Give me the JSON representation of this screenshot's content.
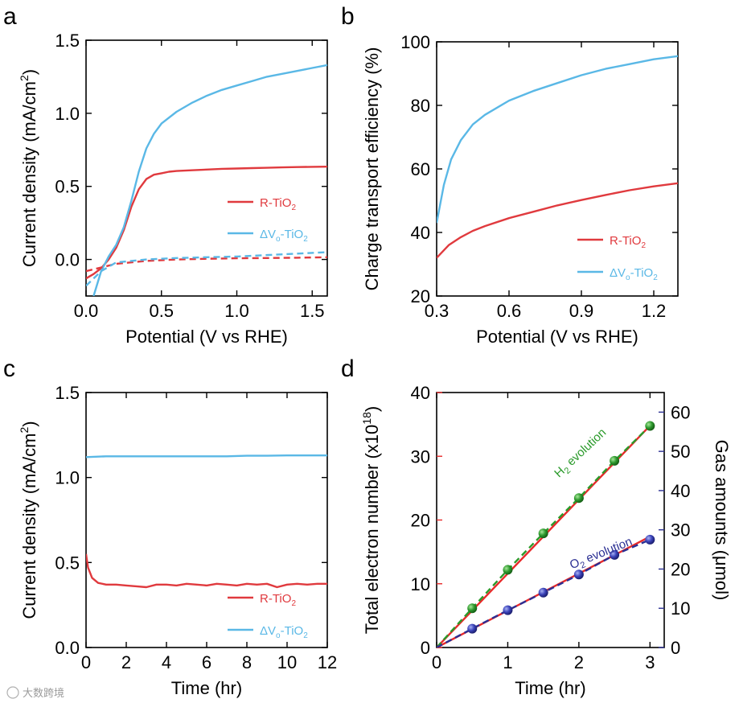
{
  "panels": [
    "a",
    "b",
    "c",
    "d"
  ],
  "watermark": "大数跨境",
  "colors": {
    "red": "#e03a3e",
    "blue": "#5ab8e6",
    "green": "#2a9a2a",
    "navy": "#2b2f93",
    "d_red": "#e82a2a"
  },
  "chart_data": [
    {
      "type": "line",
      "xlabel": "Potential (V vs RHE)",
      "ylabel": "Current density (mA/cm",
      "ylabel_sup": "2",
      "ylabel_close": ")",
      "xlim": [
        0,
        1.6
      ],
      "ylim": [
        -0.25,
        1.5
      ],
      "xticks": [
        0.0,
        0.5,
        1.0,
        1.5
      ],
      "xtick_labels": [
        "0.0",
        "0.5",
        "1.0",
        "1.5"
      ],
      "yticks": [
        0.0,
        0.5,
        1.0,
        1.5
      ],
      "ytick_labels": [
        "0.0",
        "0.5",
        "1.0",
        "1.5"
      ],
      "legend_position": "center-right",
      "series": [
        {
          "name": "R-TiO2",
          "legend_main": "R-TiO",
          "legend_sub": "2",
          "style": "solid",
          "color": "#e03a3e",
          "x": [
            0,
            0.05,
            0.1,
            0.15,
            0.2,
            0.25,
            0.3,
            0.35,
            0.4,
            0.45,
            0.5,
            0.55,
            0.6,
            0.7,
            0.8,
            0.9,
            1.0,
            1.1,
            1.2,
            1.3,
            1.4,
            1.5,
            1.6
          ],
          "y": [
            -0.13,
            -0.1,
            -0.06,
            0.0,
            0.08,
            0.2,
            0.36,
            0.48,
            0.55,
            0.58,
            0.59,
            0.6,
            0.605,
            0.61,
            0.615,
            0.62,
            0.622,
            0.625,
            0.627,
            0.63,
            0.632,
            0.634,
            0.635
          ]
        },
        {
          "name": "ΔVo-TiO2",
          "legend_main": "ΔV",
          "legend_sub_o": "o",
          "legend_mid": "-TiO",
          "legend_sub": "2",
          "style": "solid",
          "color": "#5ab8e6",
          "x": [
            0.05,
            0.1,
            0.15,
            0.2,
            0.25,
            0.3,
            0.35,
            0.4,
            0.45,
            0.5,
            0.6,
            0.7,
            0.8,
            0.9,
            1.0,
            1.1,
            1.2,
            1.3,
            1.4,
            1.5,
            1.6
          ],
          "y": [
            -0.25,
            -0.08,
            0.02,
            0.1,
            0.22,
            0.4,
            0.6,
            0.76,
            0.86,
            0.93,
            1.01,
            1.07,
            1.12,
            1.16,
            1.19,
            1.22,
            1.25,
            1.27,
            1.29,
            1.31,
            1.33
          ]
        },
        {
          "name": "R-TiO2 dark",
          "style": "dashed",
          "color": "#e03a3e",
          "x": [
            0,
            0.2,
            0.4,
            0.6,
            0.8,
            1.0,
            1.2,
            1.4,
            1.6
          ],
          "y": [
            -0.08,
            -0.03,
            -0.01,
            0.0,
            0.005,
            0.008,
            0.01,
            0.012,
            0.015
          ]
        },
        {
          "name": "ΔVo-TiO2 dark",
          "style": "dashed",
          "color": "#5ab8e6",
          "x": [
            0,
            0.1,
            0.2,
            0.4,
            0.6,
            0.8,
            1.0,
            1.2,
            1.4,
            1.6
          ],
          "y": [
            -0.18,
            -0.08,
            -0.02,
            0.0,
            0.01,
            0.015,
            0.02,
            0.03,
            0.04,
            0.05
          ]
        }
      ]
    },
    {
      "type": "line",
      "xlabel": "Potential (V vs RHE)",
      "ylabel": "Charge transport efficiency (%)",
      "xlim": [
        0.3,
        1.3
      ],
      "ylim": [
        20,
        100
      ],
      "xticks": [
        0.3,
        0.6,
        0.9,
        1.2
      ],
      "xtick_labels": [
        "0.3",
        "0.6",
        "0.9",
        "1.2"
      ],
      "yticks": [
        20,
        40,
        60,
        80,
        100
      ],
      "ytick_labels": [
        "20",
        "40",
        "60",
        "80",
        "100"
      ],
      "legend_position": "bottom-right",
      "series": [
        {
          "name": "R-TiO2",
          "legend_main": "R-TiO",
          "legend_sub": "2",
          "style": "solid",
          "color": "#e03a3e",
          "x": [
            0.3,
            0.35,
            0.4,
            0.45,
            0.5,
            0.6,
            0.7,
            0.8,
            0.9,
            1.0,
            1.1,
            1.2,
            1.3
          ],
          "y": [
            32,
            36,
            38.5,
            40.5,
            42,
            44.5,
            46.5,
            48.5,
            50.2,
            51.8,
            53.3,
            54.5,
            55.5
          ]
        },
        {
          "name": "ΔVo-TiO2",
          "legend_main": "ΔV",
          "legend_sub_o": "o",
          "legend_mid": "-TiO",
          "legend_sub": "2",
          "style": "solid",
          "color": "#5ab8e6",
          "x": [
            0.3,
            0.33,
            0.36,
            0.4,
            0.45,
            0.5,
            0.6,
            0.7,
            0.8,
            0.9,
            1.0,
            1.1,
            1.2,
            1.3
          ],
          "y": [
            43,
            55,
            63,
            69,
            74,
            77,
            81.5,
            84.5,
            87,
            89.5,
            91.5,
            93,
            94.5,
            95.5
          ]
        }
      ]
    },
    {
      "type": "line",
      "xlabel": "Time (hr)",
      "ylabel": "Current density (mA/cm",
      "ylabel_sup": "2",
      "ylabel_close": ")",
      "xlim": [
        0,
        12
      ],
      "ylim": [
        0,
        1.5
      ],
      "xticks": [
        0,
        2,
        4,
        6,
        8,
        10,
        12
      ],
      "xtick_labels": [
        "0",
        "2",
        "4",
        "6",
        "8",
        "10",
        "12"
      ],
      "yticks": [
        0.0,
        0.5,
        1.0,
        1.5
      ],
      "ytick_labels": [
        "0.0",
        "0.5",
        "1.0",
        "1.5"
      ],
      "legend_position": "bottom-right",
      "series": [
        {
          "name": "R-TiO2",
          "legend_main": "R-TiO",
          "legend_sub": "2",
          "style": "solid",
          "color": "#e03a3e",
          "x": [
            0,
            0.1,
            0.3,
            0.6,
            1,
            1.5,
            2,
            2.5,
            3,
            3.5,
            4,
            4.5,
            5,
            5.5,
            6,
            6.5,
            7,
            7.5,
            8,
            8.5,
            9,
            9.5,
            10,
            10.5,
            11,
            11.5,
            12
          ],
          "y": [
            0.55,
            0.47,
            0.41,
            0.38,
            0.37,
            0.37,
            0.365,
            0.36,
            0.355,
            0.37,
            0.37,
            0.365,
            0.375,
            0.37,
            0.365,
            0.375,
            0.37,
            0.365,
            0.375,
            0.37,
            0.375,
            0.355,
            0.37,
            0.375,
            0.37,
            0.375,
            0.375
          ]
        },
        {
          "name": "ΔVo-TiO2",
          "legend_main": "ΔV",
          "legend_sub_o": "o",
          "legend_mid": "-TiO",
          "legend_sub": "2",
          "style": "solid",
          "color": "#5ab8e6",
          "x": [
            0,
            1,
            2,
            3,
            4,
            5,
            6,
            7,
            8,
            9,
            10,
            11,
            12
          ],
          "y": [
            1.12,
            1.125,
            1.125,
            1.125,
            1.125,
            1.125,
            1.125,
            1.125,
            1.128,
            1.128,
            1.13,
            1.13,
            1.13
          ]
        }
      ]
    },
    {
      "type": "line",
      "xlabel": "Time (hr)",
      "ylabel": "Total electron number (x10",
      "ylabel_sup": "18",
      "ylabel_close": ")",
      "y2label": "Gas amounts (μmol)",
      "xlim": [
        0,
        3.2
      ],
      "ylim": [
        0,
        40
      ],
      "y2lim": [
        0,
        65
      ],
      "xticks": [
        0,
        1,
        2,
        3
      ],
      "xtick_labels": [
        "0",
        "1",
        "2",
        "3"
      ],
      "yticks": [
        0,
        10,
        20,
        30,
        40
      ],
      "ytick_labels": [
        "0",
        "10",
        "20",
        "30",
        "40"
      ],
      "y2ticks": [
        0,
        10,
        20,
        30,
        40,
        50,
        60
      ],
      "y2tick_labels": [
        "0",
        "10",
        "20",
        "30",
        "40",
        "50",
        "60"
      ],
      "annotations": [
        {
          "main": "H",
          "sub": "2",
          "rest": " evolution",
          "color": "#2a9a2a",
          "x": 1.72,
          "y": 26.6,
          "angle": -43
        },
        {
          "main": "O",
          "sub": "2",
          "rest": " evolution",
          "color": "#2b2f93",
          "x": 1.9,
          "y": 12.3,
          "angle": -22
        }
      ],
      "series": [
        {
          "name": "Total electron number (H2 line)",
          "style": "solid",
          "color": "#e82a2a",
          "x": [
            0,
            3
          ],
          "y": [
            0,
            34.8
          ]
        },
        {
          "name": "H2 evolution",
          "axis": "y2",
          "style": "dashed",
          "color": "#2a9a2a",
          "marker": "circle",
          "x": [
            0,
            0.5,
            1.0,
            1.5,
            2.0,
            2.5,
            3.0
          ],
          "y": [
            0,
            10,
            19.8,
            29.1,
            38.1,
            47.6,
            56.5
          ]
        },
        {
          "name": "Total electron number (O2 line)",
          "style": "solid",
          "color": "#e82a2a",
          "x": [
            0,
            3
          ],
          "y": [
            0,
            17.4
          ]
        },
        {
          "name": "O2 evolution",
          "axis": "y2",
          "style": "dashed",
          "color": "#2b2f93",
          "marker": "circle",
          "x": [
            0,
            0.5,
            1.0,
            1.5,
            2.0,
            2.5,
            3.0
          ],
          "y": [
            0,
            4.8,
            9.5,
            14.0,
            18.6,
            23.6,
            27.5
          ]
        }
      ]
    }
  ]
}
